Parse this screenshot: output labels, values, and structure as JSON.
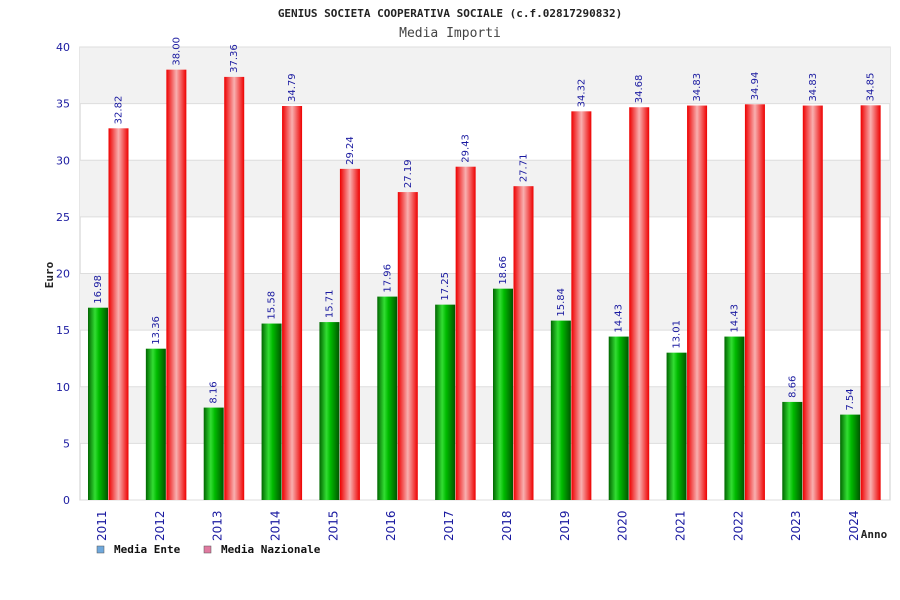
{
  "chart_data": {
    "type": "bar",
    "title": "GENIUS SOCIETA COOPERATIVA SOCIALE (c.f.02817290832)",
    "subtitle": "Media Importi",
    "xlabel": "Anno",
    "ylabel": "Euro",
    "ylim": [
      0,
      40
    ],
    "yticks": [
      "0",
      "5",
      "10",
      "15",
      "20",
      "25",
      "30",
      "35",
      "40"
    ],
    "categories": [
      "2011",
      "2012",
      "2013",
      "2014",
      "2015",
      "2016",
      "2017",
      "2018",
      "2019",
      "2020",
      "2021",
      "2022",
      "2023",
      "2024"
    ],
    "series": [
      {
        "name": "Media Ente",
        "color": "#00cc00",
        "values": [
          16.98,
          13.36,
          8.16,
          15.58,
          15.71,
          17.96,
          17.25,
          18.66,
          15.84,
          14.43,
          13.01,
          14.43,
          8.66,
          7.54
        ],
        "labels": [
          "16.98",
          "13.36",
          "8.16",
          "15.58",
          "15.71",
          "17.96",
          "17.25",
          "18.66",
          "15.84",
          "14.43",
          "13.01",
          "14.43",
          "8.66",
          "7.54"
        ]
      },
      {
        "name": "Media Nazionale",
        "color": "#ee1122",
        "values": [
          32.82,
          38.0,
          37.36,
          34.79,
          29.24,
          27.19,
          29.43,
          27.71,
          34.32,
          34.68,
          34.83,
          34.94,
          34.83,
          34.85
        ],
        "labels": [
          "32.82",
          "38.00",
          "37.36",
          "34.79",
          "29.24",
          "27.19",
          "29.43",
          "27.71",
          "34.32",
          "34.68",
          "34.83",
          "34.94",
          "34.83",
          "34.85"
        ]
      }
    ],
    "legend": [
      {
        "label": "Media Ente",
        "color": "#6fa8dc"
      },
      {
        "label": "Media Nazionale",
        "color": "#e07aa0"
      }
    ],
    "grid": true,
    "legend_position": "bottom-left"
  }
}
